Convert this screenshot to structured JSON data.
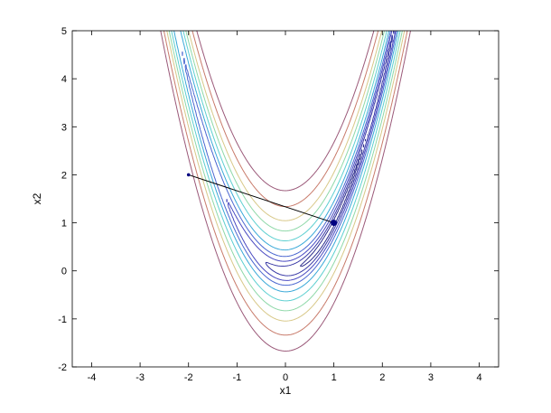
{
  "chart_data": {
    "type": "line",
    "xlabel": "x1",
    "ylabel": "x2",
    "xlim": [
      -4.4,
      4.4
    ],
    "ylim": [
      -2,
      5
    ],
    "xticks": [
      "-4",
      "-3",
      "-2",
      "-1",
      "0",
      "1",
      "2",
      "3",
      "4"
    ],
    "yticks": [
      "-2",
      "-1",
      "0",
      "1",
      "2",
      "3",
      "4",
      "5"
    ],
    "grid": false,
    "contours": {
      "function": "rosenbrock",
      "levels": [
        {
          "value": 0.5,
          "color": "#2c2c8c"
        },
        {
          "value": 2,
          "color": "#3a3aa6"
        },
        {
          "value": 5,
          "color": "#4848c0"
        },
        {
          "value": 10,
          "color": "#4a66d0"
        },
        {
          "value": 20,
          "color": "#38a8d8"
        },
        {
          "value": 40,
          "color": "#5ccfd0"
        },
        {
          "value": 70,
          "color": "#8ed8a8"
        },
        {
          "value": 110,
          "color": "#d8c888"
        },
        {
          "value": 180,
          "color": "#c87a6a"
        },
        {
          "value": 280,
          "color": "#9a5878"
        }
      ]
    },
    "series": [
      {
        "points": [
          [
            -2,
            2
          ],
          [
            1,
            1
          ]
        ],
        "color": "#000080"
      }
    ]
  }
}
